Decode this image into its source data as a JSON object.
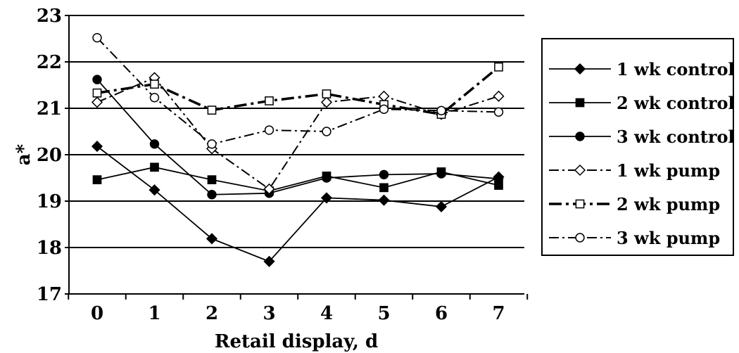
{
  "chart_data": {
    "type": "line",
    "title": "",
    "xlabel": "Retail display, d",
    "ylabel": "a*",
    "x": [
      0,
      1,
      2,
      3,
      4,
      5,
      6,
      7
    ],
    "x_tick_labels": [
      "0",
      "1",
      "2",
      "3",
      "4",
      "5",
      "6",
      "7"
    ],
    "ylim": [
      17,
      23
    ],
    "y_ticks": [
      17,
      18,
      19,
      20,
      21,
      22,
      23
    ],
    "y_tick_labels": [
      "17",
      "18",
      "19",
      "20",
      "21",
      "22",
      "23"
    ],
    "grid": "horizontal",
    "legend_position": "right",
    "series": [
      {
        "name": "1 wk control",
        "marker": "diamond",
        "fill": "filled",
        "line": "solid",
        "values": [
          20.18,
          19.24,
          18.19,
          17.7,
          19.07,
          19.02,
          18.88,
          19.52
        ]
      },
      {
        "name": "2 wk control",
        "marker": "square",
        "fill": "filled",
        "line": "solid",
        "values": [
          19.46,
          19.73,
          19.46,
          19.22,
          19.54,
          19.29,
          19.63,
          19.34
        ]
      },
      {
        "name": "3 wk control",
        "marker": "circle",
        "fill": "filled",
        "line": "solid",
        "values": [
          21.62,
          20.23,
          19.14,
          19.17,
          19.5,
          19.57,
          19.59,
          19.48
        ]
      },
      {
        "name": "1 wk pump",
        "marker": "diamond",
        "fill": "open",
        "line": "dashdot-thin",
        "values": [
          21.13,
          21.66,
          20.13,
          19.26,
          21.13,
          21.26,
          20.87,
          21.26
        ]
      },
      {
        "name": "2 wk pump",
        "marker": "square",
        "fill": "open",
        "line": "dashdot-thick",
        "values": [
          21.33,
          21.52,
          20.96,
          21.16,
          21.31,
          21.08,
          20.87,
          21.89
        ]
      },
      {
        "name": "3 wk pump",
        "marker": "circle",
        "fill": "open",
        "line": "dashdot-thin",
        "values": [
          22.52,
          21.23,
          20.23,
          20.53,
          20.5,
          20.98,
          20.95,
          20.92
        ]
      }
    ]
  }
}
